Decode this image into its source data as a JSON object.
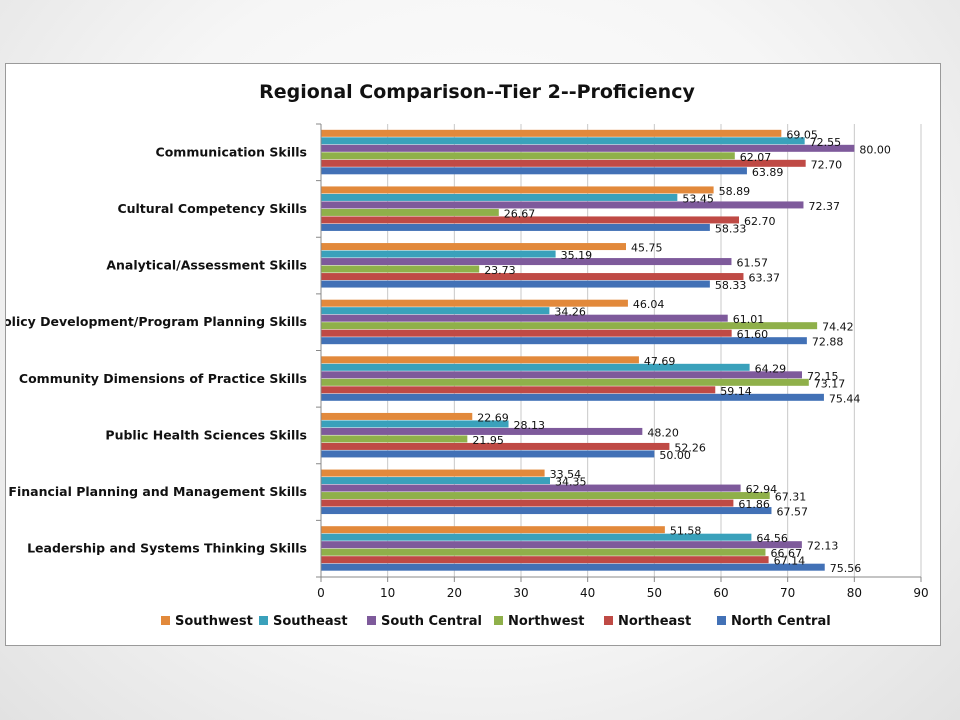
{
  "chart_data": {
    "type": "bar",
    "orientation": "horizontal",
    "title": "Regional Comparison--Tier 2--Proficiency",
    "categories": [
      "Communication Skills",
      "Cultural Competency Skills",
      "Analytical/Assessment Skills",
      "Policy Development/Program Planning Skills",
      "Community Dimensions of Practice Skills",
      "Public Health Sciences Skills",
      "Financial Planning and Management Skills",
      "Leadership and Systems Thinking Skills"
    ],
    "series": [
      {
        "name": "Southwest",
        "color": "#e2893b",
        "values": [
          69.05,
          58.89,
          45.75,
          46.04,
          47.69,
          22.69,
          33.54,
          51.58
        ]
      },
      {
        "name": "Southeast",
        "color": "#3aa1bb",
        "values": [
          72.55,
          53.45,
          35.19,
          34.26,
          64.29,
          28.13,
          34.35,
          64.56
        ]
      },
      {
        "name": "South Central",
        "color": "#7e5a9b",
        "values": [
          80.0,
          72.37,
          61.57,
          61.01,
          72.15,
          48.2,
          62.94,
          72.13
        ]
      },
      {
        "name": "Northwest",
        "color": "#8fb04a",
        "values": [
          62.07,
          26.67,
          23.73,
          74.42,
          73.17,
          21.95,
          67.31,
          66.67
        ]
      },
      {
        "name": "Northeast",
        "color": "#bf4a45",
        "values": [
          72.7,
          62.7,
          63.37,
          61.6,
          59.14,
          52.26,
          61.86,
          67.14
        ]
      },
      {
        "name": "North Central",
        "color": "#4271b6",
        "values": [
          63.89,
          58.33,
          58.33,
          72.88,
          75.44,
          50.0,
          67.57,
          75.56
        ]
      }
    ],
    "xlim": [
      0,
      90
    ],
    "ticks": [
      "0",
      "10",
      "20",
      "30",
      "40",
      "50",
      "60",
      "70",
      "80",
      "90"
    ],
    "grid": true,
    "legend_position": "bottom"
  }
}
